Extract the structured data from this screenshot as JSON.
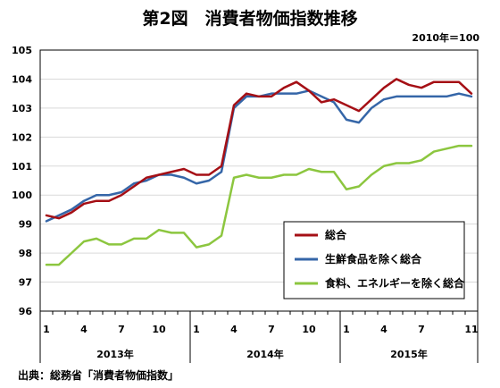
{
  "chart_data": {
    "type": "line",
    "title": "第2図　消費者物価指数推移",
    "base_note": "2010年＝100",
    "source": "出典：総務省「消費者物価指数」",
    "ylim": [
      96,
      105
    ],
    "y_ticks": [
      "96",
      "97",
      "98",
      "99",
      "100",
      "101",
      "102",
      "103",
      "104",
      "105"
    ],
    "months": [
      "1",
      "2",
      "3",
      "4",
      "5",
      "6",
      "7",
      "8",
      "9",
      "10",
      "11",
      "12",
      "1",
      "2",
      "3",
      "4",
      "5",
      "6",
      "7",
      "8",
      "9",
      "10",
      "11",
      "12",
      "1",
      "2",
      "3",
      "4",
      "5",
      "6",
      "7",
      "8",
      "9",
      "10",
      "11"
    ],
    "month_tick_labels": [
      {
        "index": 0,
        "label": "1"
      },
      {
        "index": 3,
        "label": "4"
      },
      {
        "index": 6,
        "label": "7"
      },
      {
        "index": 9,
        "label": "10"
      },
      {
        "index": 12,
        "label": "1"
      },
      {
        "index": 15,
        "label": "4"
      },
      {
        "index": 18,
        "label": "7"
      },
      {
        "index": 21,
        "label": "10"
      },
      {
        "index": 24,
        "label": "1"
      },
      {
        "index": 27,
        "label": "4"
      },
      {
        "index": 30,
        "label": "7"
      },
      {
        "index": 34,
        "label": "11"
      }
    ],
    "year_groups": [
      {
        "label": "2013年",
        "start": 0,
        "end": 11
      },
      {
        "label": "2014年",
        "start": 12,
        "end": 23
      },
      {
        "label": "2015年",
        "start": 24,
        "end": 34
      }
    ],
    "legend_position": "lower-right",
    "series": [
      {
        "name": "総合",
        "color": "#a50f15",
        "values": [
          99.3,
          99.2,
          99.4,
          99.7,
          99.8,
          99.8,
          100.0,
          100.3,
          100.6,
          100.7,
          100.8,
          100.9,
          100.7,
          100.7,
          101.0,
          103.1,
          103.5,
          103.4,
          103.4,
          103.7,
          103.9,
          103.6,
          103.2,
          103.3,
          103.1,
          102.9,
          103.3,
          103.7,
          104.0,
          103.8,
          103.7,
          103.9,
          103.9,
          103.9,
          103.5
        ]
      },
      {
        "name": "生鮮食品を除く総合",
        "color": "#3566a8",
        "values": [
          99.1,
          99.3,
          99.5,
          99.8,
          100.0,
          100.0,
          100.1,
          100.4,
          100.5,
          100.7,
          100.7,
          100.6,
          100.4,
          100.5,
          100.8,
          103.0,
          103.4,
          103.4,
          103.5,
          103.5,
          103.5,
          103.6,
          103.4,
          103.2,
          102.6,
          102.5,
          103.0,
          103.3,
          103.4,
          103.4,
          103.4,
          103.4,
          103.4,
          103.5,
          103.4
        ]
      },
      {
        "name": "食料、エネルギーを除く総合",
        "color": "#8cc63f",
        "values": [
          97.6,
          97.6,
          98.0,
          98.4,
          98.5,
          98.3,
          98.3,
          98.5,
          98.5,
          98.8,
          98.7,
          98.7,
          98.2,
          98.3,
          98.6,
          100.6,
          100.7,
          100.6,
          100.6,
          100.7,
          100.7,
          100.9,
          100.8,
          100.8,
          100.2,
          100.3,
          100.7,
          101.0,
          101.1,
          101.1,
          101.2,
          101.5,
          101.6,
          101.7,
          101.7
        ]
      }
    ]
  }
}
